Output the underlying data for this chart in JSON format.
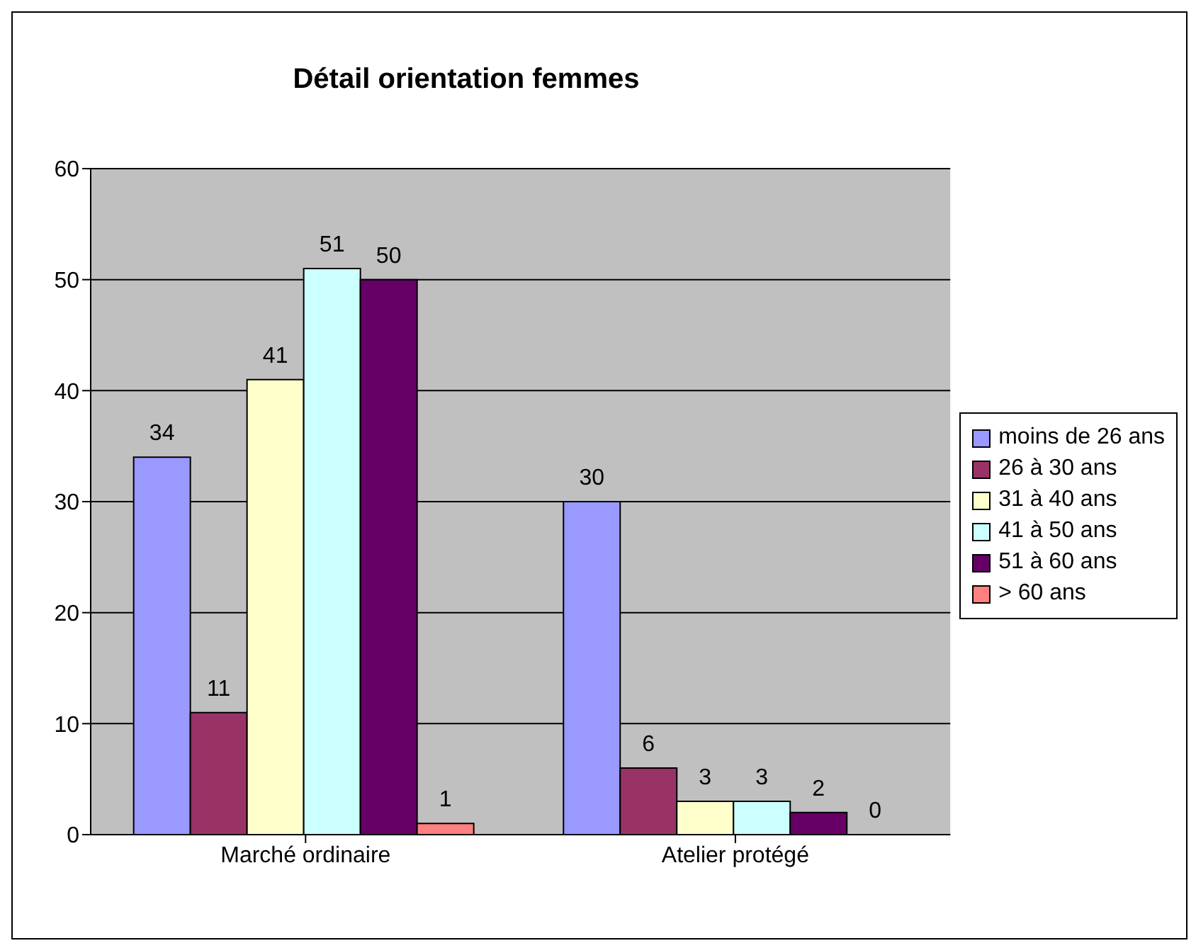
{
  "chart_data": {
    "type": "bar",
    "title": "Détail orientation femmes",
    "categories": [
      "Marché ordinaire",
      "Atelier protégé"
    ],
    "series": [
      {
        "name": "moins de 26 ans",
        "color": "#9999ff",
        "values": [
          34,
          30
        ]
      },
      {
        "name": "26 à 30 ans",
        "color": "#993366",
        "values": [
          11,
          6
        ]
      },
      {
        "name": "31 à 40 ans",
        "color": "#ffffcc",
        "values": [
          41,
          3
        ]
      },
      {
        "name": "41 à 50 ans",
        "color": "#ccffff",
        "values": [
          51,
          3
        ]
      },
      {
        "name": "51 à 60 ans",
        "color": "#660066",
        "values": [
          50,
          2
        ]
      },
      {
        "name": "> 60 ans",
        "color": "#ff8080",
        "values": [
          1,
          0
        ]
      }
    ],
    "ylim": [
      0,
      60
    ],
    "yticks": [
      0,
      10,
      20,
      30,
      40,
      50,
      60
    ],
    "grid": "y",
    "legend": "right",
    "data_labels": true
  }
}
